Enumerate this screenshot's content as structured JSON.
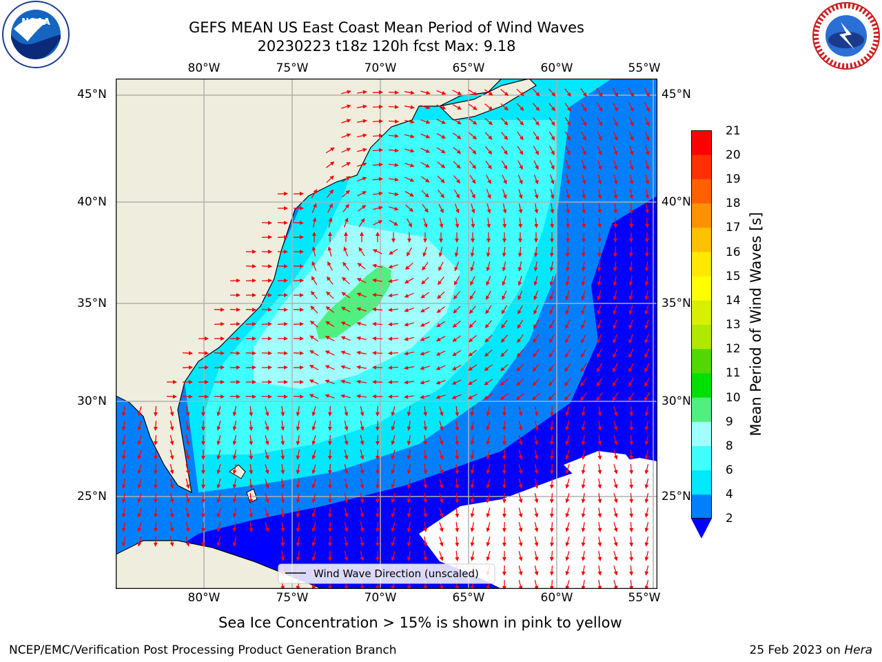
{
  "header": {
    "title_line1": "GEFS MEAN US East Coast Mean Period of Wind Waves",
    "title_line2": "20230223 t18z 120h fcst   Max: 9.18"
  },
  "logos": {
    "noaa": {
      "text": "NOAA",
      "ring_text": "NATIONAL OCEANIC AND ATMOSPHERIC ADMINISTRATION · U.S. DEPARTMENT OF COMMERCE"
    },
    "nws": {
      "ring_text": "NATIONAL WEATHER SERVICE"
    }
  },
  "map": {
    "lon_ticks": [
      "80°W",
      "75°W",
      "70°W",
      "65°W",
      "60°W",
      "55°W"
    ],
    "lat_ticks": [
      "45°N",
      "40°N",
      "35°N",
      "30°N",
      "25°N"
    ],
    "legend_label": "Wind Wave Direction (unscaled)",
    "colors": {
      "land": "#efeddd",
      "arrow": "#ff0000",
      "gridline": "#b0b0b0",
      "missing": "#ffffff"
    }
  },
  "colorbar": {
    "title": "Mean Period of Wind Waves [s]",
    "labels": [
      "21",
      "20",
      "19",
      "18",
      "17",
      "16",
      "15",
      "14",
      "13",
      "12",
      "11",
      "10",
      "9",
      "8",
      "6",
      "4",
      "2"
    ],
    "bins": [
      {
        "lo": 0,
        "hi": 2,
        "color": "#0000ff"
      },
      {
        "lo": 2,
        "hi": 4,
        "color": "#0080ff"
      },
      {
        "lo": 4,
        "hi": 6,
        "color": "#00e8ff"
      },
      {
        "lo": 6,
        "hi": 8,
        "color": "#40ffff"
      },
      {
        "lo": 8,
        "hi": 9,
        "color": "#a0ffff"
      },
      {
        "lo": 9,
        "hi": 10,
        "color": "#50f080"
      },
      {
        "lo": 10,
        "hi": 11,
        "color": "#00e000"
      },
      {
        "lo": 11,
        "hi": 12,
        "color": "#50d800"
      },
      {
        "lo": 12,
        "hi": 13,
        "color": "#b0e800"
      },
      {
        "lo": 13,
        "hi": 14,
        "color": "#d8f000"
      },
      {
        "lo": 14,
        "hi": 15,
        "color": "#ffff00"
      },
      {
        "lo": 15,
        "hi": 16,
        "color": "#ffe800"
      },
      {
        "lo": 16,
        "hi": 17,
        "color": "#ffc000"
      },
      {
        "lo": 17,
        "hi": 18,
        "color": "#ff9000"
      },
      {
        "lo": 18,
        "hi": 19,
        "color": "#ff6000"
      },
      {
        "lo": 19,
        "hi": 20,
        "color": "#ff3000"
      },
      {
        "lo": 20,
        "hi": 21,
        "color": "#ff0000"
      }
    ]
  },
  "notes": {
    "ice": "Sea Ice Concentration > 15% is shown in pink to yellow"
  },
  "footer": {
    "left": "NCEP/EMC/Verification Post Processing Product Generation Branch",
    "date": "25 Feb 2023 on ",
    "host": "Hera"
  }
}
